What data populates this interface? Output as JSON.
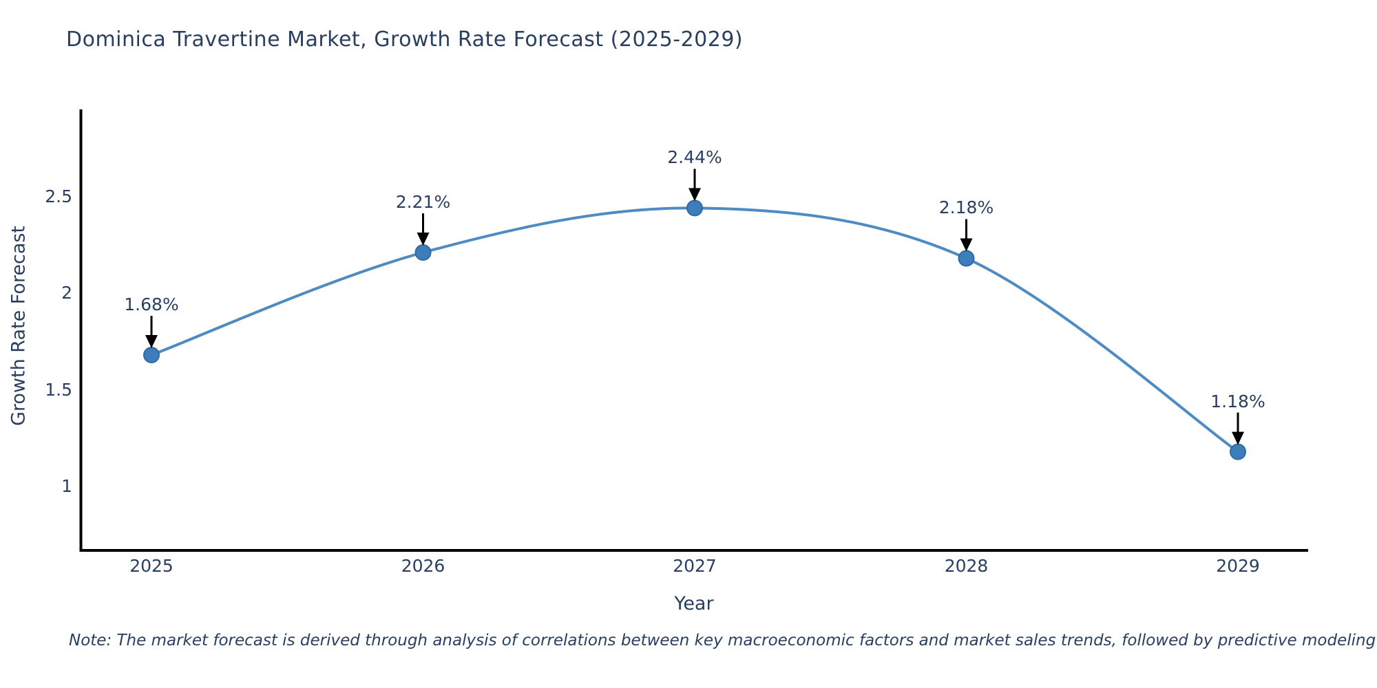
{
  "title": "Dominica Travertine Market, Growth Rate Forecast (2025-2029)",
  "note": "Note: The market forecast is derived through analysis of correlations between key macroeconomic factors and market sales trends, followed by predictive modeling to project future sales.",
  "chart_data": {
    "type": "line",
    "categories": [
      "2025",
      "2026",
      "2027",
      "2028",
      "2029"
    ],
    "values": [
      1.68,
      2.21,
      2.44,
      2.18,
      1.18
    ],
    "point_labels": [
      "1.68%",
      "2.21%",
      "2.44%",
      "2.18%",
      "1.18%"
    ],
    "title": "Dominica Travertine Market, Growth Rate Forecast (2025-2029)",
    "xlabel": "Year",
    "ylabel": "Growth Rate Forecast",
    "yticks": [
      1,
      1.5,
      2,
      2.5
    ],
    "ytick_labels": [
      "1",
      "1.5",
      "2",
      "2.5"
    ],
    "ylim": [
      0.67,
      2.95
    ],
    "grid": false,
    "legend": "none",
    "line_color": "#4d8bc2",
    "marker_color": "#3d7db9",
    "marker_edge_color": "#2f6ba3",
    "arrow_color": "#000000",
    "axis_color": "#000000",
    "text_color": "#2a3f5f"
  }
}
